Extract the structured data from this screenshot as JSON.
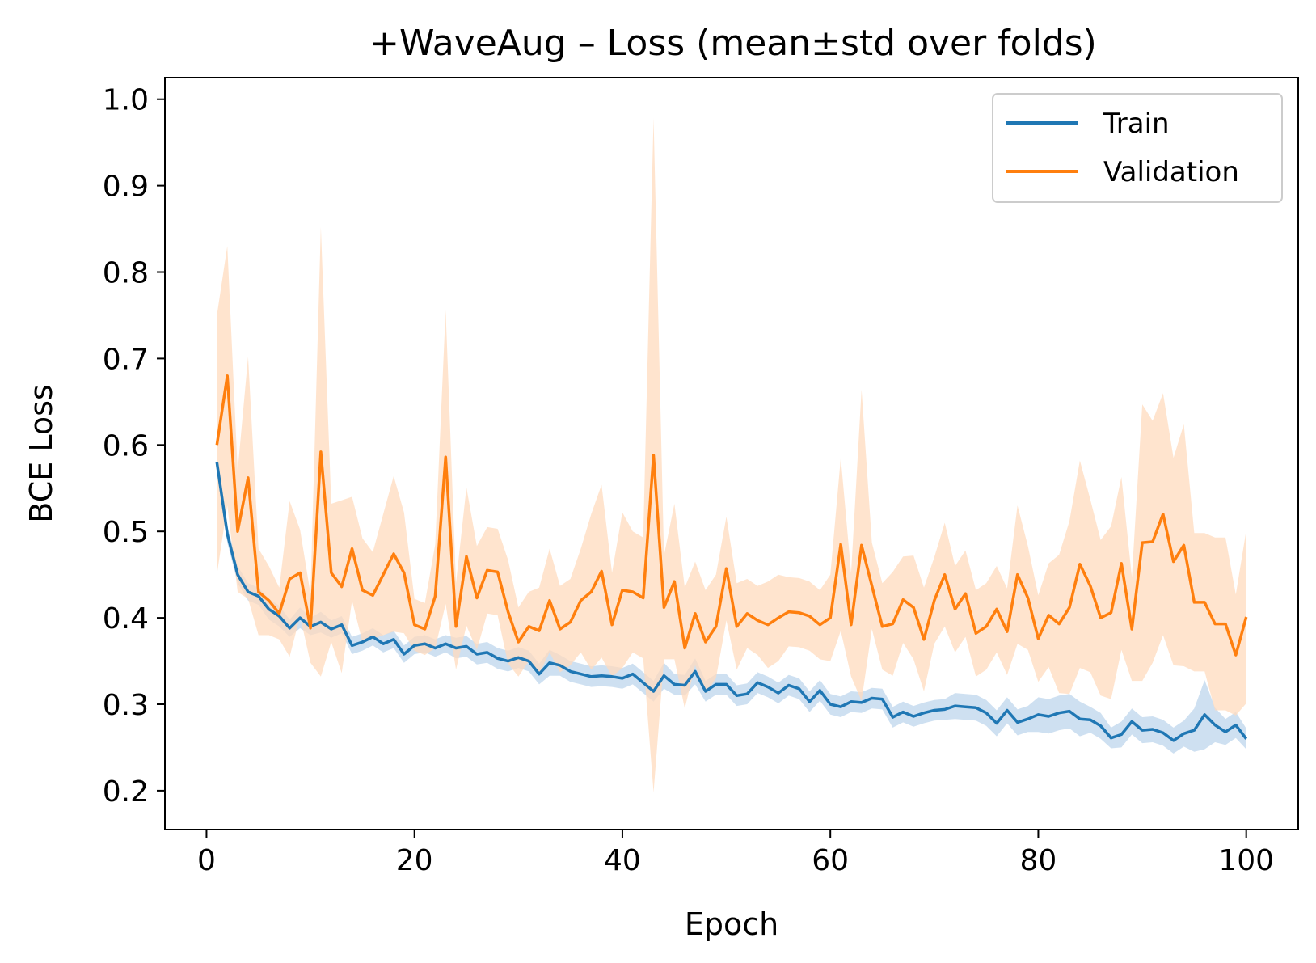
{
  "chart_data": {
    "type": "line",
    "title": "+WaveAug – Loss (mean±std over folds)",
    "xlabel": "Epoch",
    "ylabel": "BCE Loss",
    "xlim": [
      -4,
      105
    ],
    "ylim": [
      0.155,
      1.025
    ],
    "xticks": [
      0,
      20,
      40,
      60,
      80,
      100
    ],
    "xtick_labels": [
      "0",
      "20",
      "40",
      "60",
      "80",
      "100"
    ],
    "yticks": [
      0.2,
      0.3,
      0.4,
      0.5,
      0.6,
      0.7,
      0.8,
      0.9,
      1.0
    ],
    "ytick_labels": [
      "0.2",
      "0.3",
      "0.4",
      "0.5",
      "0.6",
      "0.7",
      "0.8",
      "0.9",
      "1.0"
    ],
    "grid": false,
    "legend_position": "top-right",
    "x": [
      1,
      2,
      3,
      4,
      5,
      6,
      7,
      8,
      9,
      10,
      11,
      12,
      13,
      14,
      15,
      16,
      17,
      18,
      19,
      20,
      21,
      22,
      23,
      24,
      25,
      26,
      27,
      28,
      29,
      30,
      31,
      32,
      33,
      34,
      35,
      36,
      37,
      38,
      39,
      40,
      41,
      42,
      43,
      44,
      45,
      46,
      47,
      48,
      49,
      50,
      51,
      52,
      53,
      54,
      55,
      56,
      57,
      58,
      59,
      60,
      61,
      62,
      63,
      64,
      65,
      66,
      67,
      68,
      69,
      70,
      71,
      72,
      73,
      74,
      75,
      76,
      77,
      78,
      79,
      80,
      81,
      82,
      83,
      84,
      85,
      86,
      87,
      88,
      89,
      90,
      91,
      92,
      93,
      94,
      95,
      96,
      97,
      98,
      99,
      100
    ],
    "series": [
      {
        "name": "Train",
        "color": "#1f77b4",
        "band_color": "#c6dbef",
        "values": [
          0.58,
          0.497,
          0.45,
          0.43,
          0.425,
          0.41,
          0.402,
          0.388,
          0.4,
          0.39,
          0.395,
          0.387,
          0.392,
          0.368,
          0.372,
          0.378,
          0.37,
          0.375,
          0.358,
          0.368,
          0.37,
          0.365,
          0.37,
          0.365,
          0.367,
          0.358,
          0.36,
          0.353,
          0.35,
          0.354,
          0.35,
          0.335,
          0.348,
          0.345,
          0.338,
          0.335,
          0.332,
          0.333,
          0.332,
          0.33,
          0.335,
          0.325,
          0.315,
          0.333,
          0.323,
          0.322,
          0.338,
          0.315,
          0.323,
          0.323,
          0.31,
          0.312,
          0.325,
          0.32,
          0.313,
          0.322,
          0.318,
          0.303,
          0.316,
          0.3,
          0.297,
          0.303,
          0.302,
          0.307,
          0.306,
          0.285,
          0.291,
          0.286,
          0.29,
          0.293,
          0.294,
          0.298,
          0.297,
          0.296,
          0.29,
          0.278,
          0.293,
          0.279,
          0.283,
          0.288,
          0.286,
          0.29,
          0.292,
          0.283,
          0.282,
          0.275,
          0.261,
          0.265,
          0.28,
          0.27,
          0.271,
          0.267,
          0.258,
          0.266,
          0.27,
          0.288,
          0.276,
          0.268,
          0.276,
          0.26
        ],
        "std": [
          0.0,
          0.01,
          0.01,
          0.01,
          0.01,
          0.012,
          0.012,
          0.01,
          0.012,
          0.01,
          0.012,
          0.01,
          0.01,
          0.01,
          0.01,
          0.01,
          0.01,
          0.01,
          0.01,
          0.01,
          0.01,
          0.01,
          0.01,
          0.012,
          0.012,
          0.012,
          0.012,
          0.012,
          0.012,
          0.012,
          0.012,
          0.012,
          0.015,
          0.012,
          0.012,
          0.012,
          0.012,
          0.012,
          0.012,
          0.012,
          0.012,
          0.012,
          0.012,
          0.015,
          0.012,
          0.012,
          0.015,
          0.012,
          0.012,
          0.012,
          0.012,
          0.012,
          0.012,
          0.012,
          0.012,
          0.012,
          0.012,
          0.012,
          0.012,
          0.012,
          0.012,
          0.012,
          0.012,
          0.012,
          0.012,
          0.012,
          0.012,
          0.012,
          0.012,
          0.012,
          0.012,
          0.015,
          0.015,
          0.015,
          0.015,
          0.015,
          0.015,
          0.015,
          0.015,
          0.02,
          0.02,
          0.02,
          0.02,
          0.02,
          0.015,
          0.015,
          0.012,
          0.015,
          0.015,
          0.015,
          0.015,
          0.015,
          0.015,
          0.015,
          0.025,
          0.04,
          0.02,
          0.015,
          0.015,
          0.012
        ]
      },
      {
        "name": "Validation",
        "color": "#ff7f0e",
        "band_color": "#ffdbbd",
        "values": [
          0.6,
          0.68,
          0.5,
          0.562,
          0.43,
          0.42,
          0.405,
          0.445,
          0.452,
          0.388,
          0.592,
          0.452,
          0.436,
          0.48,
          0.432,
          0.426,
          0.45,
          0.474,
          0.452,
          0.392,
          0.387,
          0.425,
          0.586,
          0.39,
          0.471,
          0.423,
          0.455,
          0.453,
          0.407,
          0.372,
          0.39,
          0.385,
          0.42,
          0.387,
          0.395,
          0.42,
          0.43,
          0.454,
          0.392,
          0.432,
          0.43,
          0.423,
          0.588,
          0.412,
          0.442,
          0.365,
          0.405,
          0.372,
          0.39,
          0.457,
          0.39,
          0.405,
          0.397,
          0.392,
          0.4,
          0.407,
          0.406,
          0.402,
          0.392,
          0.4,
          0.485,
          0.392,
          0.484,
          0.437,
          0.39,
          0.393,
          0.421,
          0.412,
          0.375,
          0.42,
          0.45,
          0.41,
          0.428,
          0.382,
          0.39,
          0.41,
          0.384,
          0.45,
          0.423,
          0.376,
          0.403,
          0.393,
          0.412,
          0.462,
          0.437,
          0.4,
          0.406,
          0.463,
          0.387,
          0.487,
          0.488,
          0.52,
          0.465,
          0.484,
          0.418,
          0.418,
          0.393,
          0.393,
          0.357,
          0.401
        ],
        "std": [
          0.15,
          0.15,
          0.07,
          0.14,
          0.05,
          0.04,
          0.03,
          0.09,
          0.05,
          0.04,
          0.26,
          0.08,
          0.1,
          0.06,
          0.06,
          0.05,
          0.07,
          0.09,
          0.07,
          0.03,
          0.03,
          0.06,
          0.17,
          0.05,
          0.08,
          0.06,
          0.05,
          0.05,
          0.06,
          0.04,
          0.04,
          0.05,
          0.06,
          0.05,
          0.05,
          0.06,
          0.09,
          0.1,
          0.06,
          0.09,
          0.07,
          0.07,
          0.39,
          0.06,
          0.09,
          0.07,
          0.06,
          0.06,
          0.06,
          0.06,
          0.05,
          0.04,
          0.04,
          0.05,
          0.05,
          0.04,
          0.04,
          0.04,
          0.04,
          0.05,
          0.1,
          0.06,
          0.18,
          0.05,
          0.05,
          0.06,
          0.05,
          0.06,
          0.06,
          0.05,
          0.06,
          0.05,
          0.05,
          0.05,
          0.05,
          0.05,
          0.05,
          0.08,
          0.06,
          0.05,
          0.06,
          0.08,
          0.1,
          0.12,
          0.1,
          0.09,
          0.1,
          0.1,
          0.06,
          0.16,
          0.14,
          0.14,
          0.12,
          0.14,
          0.08,
          0.08,
          0.1,
          0.1,
          0.07,
          0.1
        ]
      }
    ]
  }
}
